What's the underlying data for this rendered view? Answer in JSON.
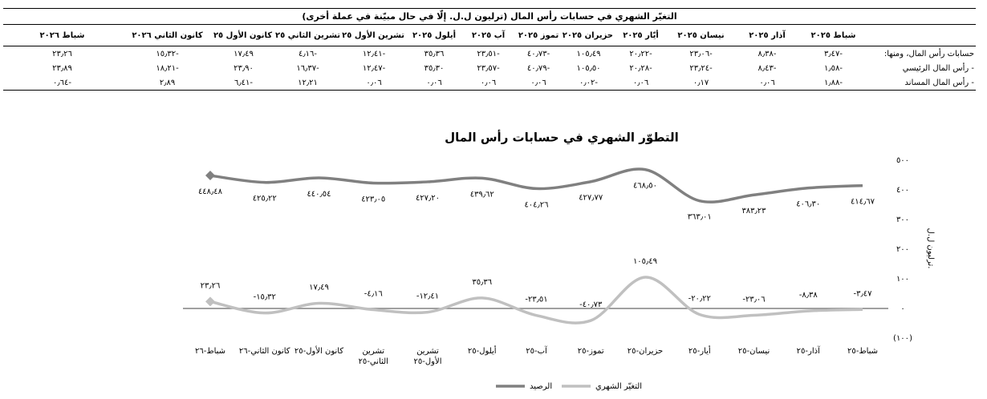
{
  "table": {
    "title": "التغيّر الشهري في حسابات رأس المال (ترليون ل.ل. إلّا في حال مبيّنة في عملة أخرى)",
    "headers": [
      "شباط ٢٠٢٥",
      "آذار ٢٠٢٥",
      "نيسان ٢٠٢٥",
      "أيّار ٢٠٢٥",
      "حزيران ٢٠٢٥",
      "تموز ٢٠٢٥",
      "آب ٢٠٢٥",
      "أيلول ٢٠٢٥",
      "تشرين الأول ٢٥",
      "تشرين الثاني ٢٠٢٥",
      "كانون الأول ٢٠٢٥",
      "كانون الثاني ٢٠٢٦",
      "شباط ٢٠٢٦"
    ],
    "rows": [
      {
        "label": "حسابات رأس المال، ومنها:",
        "cells": [
          "-٣٫٤٧",
          "-٨٫٣٨",
          "-٢٣٫٠٦",
          "-٢٠٫٢٢",
          "١٠٥٫٤٩",
          "-٤٠٫٧٣",
          "-٢٣٫٥١",
          "٣٥٫٣٦",
          "-١٢٫٤١",
          "-٤٫١٦",
          "١٧٫٤٩",
          "-١٥٫٣٢",
          "٢٣٫٢٦"
        ]
      },
      {
        "label": "- رأس المال الرئيسي",
        "cells": [
          "-١٫٥٨",
          "-٨٫٤٣",
          "-٢٣٫٢٤",
          "-٢٠٫٢٨",
          "١٠٥٫٥٠",
          "-٤٠٫٧٩",
          "-٢٣٫٥٧",
          "٣٥٫٣٠",
          "-١٢٫٤٧",
          "-١٦٫٣٧",
          "٢٣٫٩٠",
          "-١٨٫٢١",
          "٢٣٫٨٩"
        ]
      },
      {
        "label": "- رأس المال المساند",
        "cells": [
          "-١٫٨٨",
          "٠٫٠٦",
          "٠٫١٧",
          "٠٫٠٦",
          "-٠٫٠٢",
          "٠٫٠٦",
          "٠٫٠٦",
          "٠٫٠٦",
          "٠٫٠٦",
          "١٢٫٢١",
          "-٦٫٤١",
          "٢٫٨٩",
          "-٠٫٦٤"
        ]
      }
    ]
  },
  "chart_data": {
    "type": "line",
    "title": "التطوّر الشهري في حسابات رأس المال",
    "y_label": "ترليون ل.ل.",
    "categories": [
      "شباط-٢٥",
      "آذار-٢٥",
      "نيسان-٢٥",
      "أيار-٢٥",
      "حزيران-٢٥",
      "تموز-٢٥",
      "آب-٢٥",
      "أيلول-٢٥",
      "تشرين الأول-٢٥",
      "تشرين الثاني-٢٥",
      "كانون الأول-٢٥",
      "كانون الثاني-٢٦",
      "شباط-٢٦"
    ],
    "ylim": [
      -100,
      500
    ],
    "yticks": [
      {
        "value": -100,
        "label": "(١٠٠)"
      },
      {
        "value": 0,
        "label": "٠"
      },
      {
        "value": 100,
        "label": "١٠٠"
      },
      {
        "value": 200,
        "label": "٢٠٠"
      },
      {
        "value": 300,
        "label": "٣٠٠"
      },
      {
        "value": 400,
        "label": "٤٠٠"
      },
      {
        "value": 500,
        "label": "٥٠٠"
      }
    ],
    "series": [
      {
        "name": "الرصيد",
        "color": "#808080",
        "values": [
          414.67,
          406.3,
          383.23,
          363.01,
          468.5,
          427.77,
          404.26,
          439.62,
          427.2,
          423.05,
          440.54,
          425.22,
          448.48
        ],
        "value_labels": [
          "٤١٤٫٦٧",
          "٤٠٦٫٣٠",
          "٣٨٣٫٢٣",
          "٣٦٣٫٠١",
          "٤٦٨٫٥٠",
          "٤٢٧٫٧٧",
          "٤٠٤٫٢٦",
          "٤٣٩٫٦٢",
          "٤٢٧٫٢٠",
          "٤٢٣٫٠٥",
          "٤٤٠٫٥٤",
          "٤٢٥٫٢٢",
          "٤٤٨٫٤٨"
        ]
      },
      {
        "name": "التغيّر الشهري",
        "color": "#c0c0c0",
        "values": [
          -3.47,
          -8.38,
          -23.06,
          -20.22,
          105.49,
          -40.73,
          -23.51,
          35.36,
          -12.41,
          -4.16,
          17.49,
          -15.32,
          23.26
        ],
        "value_labels": [
          "-٣٫٤٧",
          "-٨٫٣٨",
          "-٢٣٫٠٦",
          "-٢٠٫٢٢",
          "١٠٥٫٤٩",
          "-٤٠٫٧٣",
          "-٢٣٫٥١",
          "٣٥٫٣٦",
          "-١٢٫٤١",
          "-٤٫١٦",
          "١٧٫٤٩",
          "-١٥٫٣٢",
          "٢٣٫٢٦"
        ]
      }
    ]
  }
}
